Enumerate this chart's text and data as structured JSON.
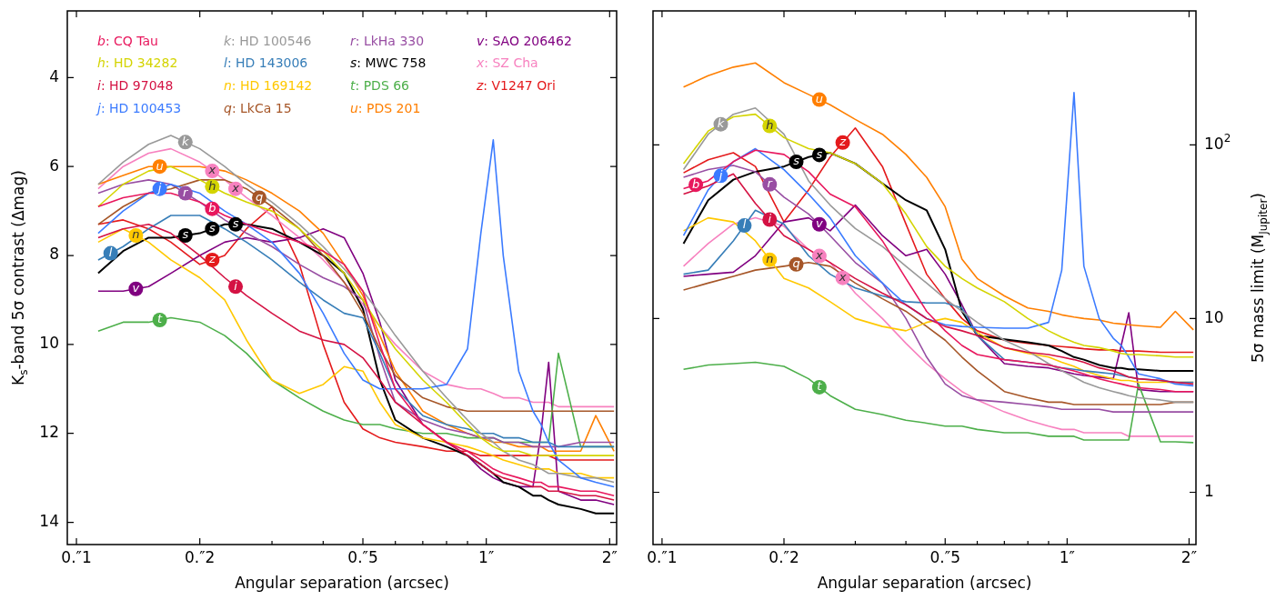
{
  "chart_data": [
    {
      "type": "line",
      "xlabel": "Angular separation (arcsec)",
      "ylabel": "K$_{s}$-band 5σ contrast (Δmag)",
      "log": "x",
      "legend": "top",
      "marker": "none",
      "x": [
        0.113,
        0.13,
        0.15,
        0.17,
        0.2,
        0.23,
        0.26,
        0.3,
        0.35,
        0.4,
        0.45,
        0.5,
        0.55,
        0.6,
        0.7,
        0.8,
        0.9,
        0.97,
        1.04,
        1.1,
        1.2,
        1.3,
        1.36,
        1.42,
        1.5,
        1.7,
        1.85,
        2.05
      ],
      "xlim": [
        0.095,
        2.08
      ],
      "ylim": [
        14.5,
        2.5
      ],
      "xticks": [
        {
          "value": 0.1,
          "label": "0.″1"
        },
        {
          "value": 0.2,
          "label": "0.″2"
        },
        {
          "value": 0.3,
          "label": null
        },
        {
          "value": 0.4,
          "label": null
        },
        {
          "value": 0.5,
          "label": "0.″5"
        },
        {
          "value": 0.6,
          "label": null
        },
        {
          "value": 0.7,
          "label": null
        },
        {
          "value": 0.8,
          "label": null
        },
        {
          "value": 0.9,
          "label": null
        },
        {
          "value": 1,
          "label": "1″"
        },
        {
          "value": 2,
          "label": "2″"
        }
      ],
      "yticks": [
        4,
        6,
        8,
        10,
        12,
        14
      ],
      "series": [
        {
          "name": "b: CQ Tau",
          "color": "#e8175d",
          "values": [
            6.9,
            6.7,
            6.6,
            6.6,
            6.8,
            7.1,
            7.3,
            7.5,
            7.7,
            7.9,
            8.2,
            8.8,
            10.0,
            11.0,
            11.8,
            12.2,
            12.4,
            12.6,
            12.8,
            12.9,
            13.0,
            13.1,
            13.1,
            13.2,
            13.2,
            13.3,
            13.3,
            13.4
          ],
          "value_labels": [
            null,
            null,
            null,
            null,
            "b",
            null,
            null,
            null,
            null,
            null,
            null,
            null,
            null,
            null,
            null,
            null,
            null,
            null,
            null,
            null,
            null,
            null,
            null,
            null,
            null,
            null,
            null,
            null
          ]
        },
        {
          "name": "h: HD 34282",
          "color": "#d4d400",
          "values": [
            6.9,
            6.4,
            6.1,
            6.0,
            6.3,
            6.6,
            6.8,
            7.0,
            7.4,
            7.9,
            8.4,
            9.0,
            9.6,
            10.1,
            10.8,
            11.3,
            11.8,
            12.1,
            12.3,
            12.4,
            12.4,
            12.5,
            12.5,
            12.5,
            12.5,
            12.5,
            12.5,
            12.5
          ],
          "value_labels": [
            null,
            null,
            null,
            null,
            "h",
            null,
            null,
            null,
            null,
            null,
            null,
            null,
            null,
            null,
            null,
            null,
            null,
            null,
            null,
            null,
            null,
            null,
            null,
            null,
            null,
            null,
            null,
            null
          ]
        },
        {
          "name": "i: HD 97048",
          "color": "#d41243",
          "values": [
            7.6,
            7.4,
            7.3,
            7.5,
            8.0,
            8.5,
            8.9,
            9.3,
            9.7,
            9.9,
            10.0,
            10.3,
            10.8,
            11.3,
            11.8,
            12.2,
            12.5,
            12.7,
            12.9,
            13.0,
            13.1,
            13.2,
            13.2,
            13.3,
            13.3,
            13.4,
            13.4,
            13.5
          ],
          "value_labels": [
            null,
            null,
            null,
            null,
            null,
            "i",
            null,
            null,
            null,
            null,
            null,
            null,
            null,
            null,
            null,
            null,
            null,
            null,
            null,
            null,
            null,
            null,
            null,
            null,
            null,
            null,
            null,
            null
          ]
        },
        {
          "name": "j: HD 100453",
          "color": "#3b7bff",
          "values": [
            7.5,
            7.0,
            6.6,
            6.4,
            6.6,
            7.0,
            7.3,
            7.7,
            8.4,
            9.3,
            10.2,
            10.8,
            11.0,
            11.0,
            11.0,
            10.9,
            10.1,
            7.5,
            5.4,
            8.0,
            10.6,
            11.5,
            11.8,
            12.2,
            12.6,
            13.0,
            13.1,
            13.2
          ],
          "value_labels": [
            null,
            null,
            "j",
            null,
            null,
            null,
            null,
            null,
            null,
            null,
            null,
            null,
            null,
            null,
            null,
            null,
            null,
            null,
            null,
            null,
            null,
            null,
            null,
            null,
            null,
            null,
            null,
            null
          ]
        },
        {
          "name": "k: HD 100546",
          "color": "#999999",
          "values": [
            6.4,
            5.9,
            5.5,
            5.3,
            5.6,
            6.0,
            6.4,
            6.8,
            7.3,
            7.8,
            8.3,
            8.8,
            9.3,
            9.8,
            10.6,
            11.2,
            11.7,
            12.0,
            12.2,
            12.4,
            12.6,
            12.7,
            12.8,
            12.9,
            12.9,
            13.0,
            13.0,
            13.1
          ],
          "value_labels": [
            null,
            null,
            null,
            "k",
            null,
            null,
            null,
            null,
            null,
            null,
            null,
            null,
            null,
            null,
            null,
            null,
            null,
            null,
            null,
            null,
            null,
            null,
            null,
            null,
            null,
            null,
            null,
            null
          ]
        },
        {
          "name": "l: HD 143006",
          "color": "#377eb8",
          "values": [
            8.1,
            7.8,
            7.4,
            7.1,
            7.1,
            7.4,
            7.7,
            8.1,
            8.6,
            9.0,
            9.3,
            9.4,
            10.2,
            11.0,
            11.6,
            11.8,
            11.9,
            12.0,
            12.0,
            12.1,
            12.1,
            12.2,
            12.2,
            12.2,
            12.3,
            12.3,
            12.3,
            12.3
          ],
          "value_labels": [
            "l",
            null,
            null,
            null,
            null,
            null,
            null,
            null,
            null,
            null,
            null,
            null,
            null,
            null,
            null,
            null,
            null,
            null,
            null,
            null,
            null,
            null,
            null,
            null,
            null,
            null,
            null,
            null
          ]
        },
        {
          "name": "n: HD 169142",
          "color": "#ffc800",
          "values": [
            7.7,
            7.4,
            7.7,
            8.1,
            8.5,
            9.0,
            9.9,
            10.8,
            11.1,
            10.9,
            10.5,
            10.6,
            11.3,
            11.8,
            12.1,
            12.2,
            12.3,
            12.4,
            12.5,
            12.6,
            12.7,
            12.8,
            12.8,
            12.8,
            12.9,
            12.9,
            13.0,
            13.0
          ],
          "value_labels": [
            null,
            "n",
            null,
            null,
            null,
            null,
            null,
            null,
            null,
            null,
            null,
            null,
            null,
            null,
            null,
            null,
            null,
            null,
            null,
            null,
            null,
            null,
            null,
            null,
            null,
            null,
            null,
            null
          ]
        },
        {
          "name": "q: LkCa 15",
          "color": "#a65628",
          "values": [
            7.3,
            6.9,
            6.6,
            6.5,
            6.3,
            6.3,
            6.5,
            6.9,
            7.4,
            8.0,
            8.6,
            9.3,
            10.1,
            10.7,
            11.2,
            11.4,
            11.5,
            11.5,
            11.5,
            11.5,
            11.5,
            11.5,
            11.5,
            11.5,
            11.5,
            11.5,
            11.5,
            11.5
          ],
          "value_labels": [
            null,
            null,
            null,
            null,
            null,
            null,
            "q",
            null,
            null,
            null,
            null,
            null,
            null,
            null,
            null,
            null,
            null,
            null,
            null,
            null,
            null,
            null,
            null,
            null,
            null,
            null,
            null,
            null
          ]
        },
        {
          "name": "r: LkHa 330",
          "color": "#984ea3",
          "values": [
            6.6,
            6.4,
            6.3,
            6.4,
            6.8,
            7.2,
            7.5,
            7.8,
            8.2,
            8.5,
            8.7,
            9.0,
            10.3,
            11.3,
            11.7,
            11.9,
            12.0,
            12.1,
            12.1,
            12.2,
            12.2,
            12.3,
            12.3,
            12.3,
            12.3,
            12.2,
            12.2,
            12.2
          ],
          "value_labels": [
            null,
            null,
            null,
            "r",
            null,
            null,
            null,
            null,
            null,
            null,
            null,
            null,
            null,
            null,
            null,
            null,
            null,
            null,
            null,
            null,
            null,
            null,
            null,
            null,
            null,
            null,
            null,
            null
          ]
        },
        {
          "name": "s: MWC 758",
          "color": "#000000",
          "values": [
            8.4,
            7.9,
            7.6,
            7.6,
            7.5,
            7.3,
            7.3,
            7.4,
            7.7,
            8.0,
            8.4,
            9.2,
            10.8,
            11.7,
            12.1,
            12.3,
            12.5,
            12.7,
            12.9,
            13.1,
            13.2,
            13.4,
            13.4,
            13.5,
            13.6,
            13.7,
            13.8,
            13.8
          ],
          "value_labels": [
            null,
            null,
            null,
            "s",
            "s",
            "s",
            null,
            null,
            null,
            null,
            null,
            null,
            null,
            null,
            null,
            null,
            null,
            null,
            null,
            null,
            null,
            null,
            null,
            null,
            null,
            null,
            null,
            null
          ]
        },
        {
          "name": "t: PDS 66",
          "color": "#4daf4a",
          "values": [
            9.7,
            9.5,
            9.5,
            9.4,
            9.5,
            9.8,
            10.2,
            10.8,
            11.2,
            11.5,
            11.7,
            11.8,
            11.8,
            11.9,
            12.0,
            12.0,
            12.1,
            12.1,
            12.1,
            12.2,
            12.2,
            12.2,
            12.2,
            12.2,
            10.2,
            12.3,
            12.3,
            12.3
          ],
          "value_labels": [
            null,
            null,
            "t",
            null,
            null,
            null,
            null,
            null,
            null,
            null,
            null,
            null,
            null,
            null,
            null,
            null,
            null,
            null,
            null,
            null,
            null,
            null,
            null,
            null,
            null,
            null,
            null,
            null
          ]
        },
        {
          "name": "u: PDS 201",
          "color": "#ff7f00",
          "values": [
            6.4,
            6.2,
            6.0,
            6.0,
            6.0,
            6.1,
            6.3,
            6.6,
            7.0,
            7.5,
            8.2,
            8.9,
            9.8,
            10.6,
            11.5,
            11.8,
            12.0,
            12.1,
            12.2,
            12.2,
            12.3,
            12.3,
            12.3,
            12.4,
            12.4,
            12.4,
            11.6,
            12.4
          ],
          "value_labels": [
            null,
            null,
            "u",
            null,
            null,
            null,
            null,
            null,
            null,
            null,
            null,
            null,
            null,
            null,
            null,
            null,
            null,
            null,
            null,
            null,
            null,
            null,
            null,
            null,
            null,
            null,
            null,
            null
          ]
        },
        {
          "name": "v: SAO 206462",
          "color": "#800080",
          "values": [
            8.8,
            8.8,
            8.7,
            8.4,
            8.0,
            7.7,
            7.6,
            7.7,
            7.6,
            7.4,
            7.6,
            8.4,
            9.5,
            10.8,
            11.8,
            12.2,
            12.5,
            12.8,
            13.0,
            13.1,
            13.2,
            13.2,
            12.0,
            10.4,
            13.3,
            13.5,
            13.5,
            13.6
          ],
          "value_labels": [
            null,
            "v",
            null,
            null,
            null,
            null,
            null,
            null,
            null,
            null,
            null,
            null,
            null,
            null,
            null,
            null,
            null,
            null,
            null,
            null,
            null,
            null,
            null,
            null,
            null,
            null,
            null,
            null
          ]
        },
        {
          "name": "x: SZ Cha",
          "color": "#f781bf",
          "values": [
            6.5,
            6.0,
            5.7,
            5.6,
            5.9,
            6.3,
            6.7,
            7.1,
            7.6,
            8.1,
            8.6,
            9.1,
            9.6,
            10.0,
            10.6,
            10.9,
            11.0,
            11.0,
            11.1,
            11.2,
            11.2,
            11.3,
            11.3,
            11.3,
            11.4,
            11.4,
            11.4,
            11.4
          ],
          "value_labels": [
            null,
            null,
            null,
            null,
            "x",
            "x",
            null,
            null,
            null,
            null,
            null,
            null,
            null,
            null,
            null,
            null,
            null,
            null,
            null,
            null,
            null,
            null,
            null,
            null,
            null,
            null,
            null,
            null
          ]
        },
        {
          "name": "z: V1247 Ori",
          "color": "#e41a1c",
          "values": [
            7.3,
            7.2,
            7.4,
            7.7,
            8.2,
            8.0,
            7.4,
            6.9,
            8.2,
            10.0,
            11.3,
            11.9,
            12.1,
            12.2,
            12.3,
            12.4,
            12.4,
            12.5,
            12.5,
            12.5,
            12.5,
            12.5,
            12.5,
            12.5,
            12.6,
            12.6,
            12.6,
            12.6
          ],
          "value_labels": [
            null,
            null,
            null,
            null,
            "z",
            null,
            null,
            null,
            null,
            null,
            null,
            null,
            null,
            null,
            null,
            null,
            null,
            null,
            null,
            null,
            null,
            null,
            null,
            null,
            null,
            null,
            null,
            null
          ]
        }
      ]
    },
    {
      "type": "line",
      "xlabel": "Angular separation (arcsec)",
      "ylabel": "5σ mass limit (M$_{Jupiter}$)",
      "log": "xy",
      "marker": "none",
      "x": [
        0.113,
        0.13,
        0.15,
        0.17,
        0.2,
        0.23,
        0.26,
        0.3,
        0.35,
        0.4,
        0.45,
        0.5,
        0.55,
        0.6,
        0.7,
        0.8,
        0.9,
        0.97,
        1.04,
        1.1,
        1.2,
        1.3,
        1.36,
        1.42,
        1.5,
        1.7,
        1.85,
        2.05
      ],
      "xlim": [
        0.095,
        2.08
      ],
      "ylim": [
        0.5,
        590
      ],
      "xticks": [
        {
          "value": 0.1,
          "label": "0.″1"
        },
        {
          "value": 0.2,
          "label": "0.″2"
        },
        {
          "value": 0.3,
          "label": null
        },
        {
          "value": 0.4,
          "label": null
        },
        {
          "value": 0.5,
          "label": "0.″5"
        },
        {
          "value": 0.6,
          "label": null
        },
        {
          "value": 0.7,
          "label": null
        },
        {
          "value": 0.8,
          "label": null
        },
        {
          "value": 0.9,
          "label": null
        },
        {
          "value": 1,
          "label": "1″"
        },
        {
          "value": 2,
          "label": "2″"
        }
      ],
      "yticks": [
        1,
        10,
        {
          "value": 100,
          "label": "10$^{2}$"
        }
      ],
      "series": [
        {
          "color": "#e8175d",
          "values": [
            56,
            62,
            80,
            93,
            88,
            70,
            52,
            44,
            28,
            17,
            11,
            8.5,
            7,
            6.2,
            5.8,
            5.6,
            5.4,
            5.2,
            5,
            4.8,
            4.5,
            4.3,
            4.2,
            4.1,
            4,
            3.9,
            3.8,
            3.8
          ],
          "value_labels": [
            "b",
            null,
            null,
            null,
            null,
            null,
            null,
            null,
            null,
            null,
            null,
            null,
            null,
            null,
            null,
            null,
            null,
            null,
            null,
            null,
            null,
            null,
            null,
            null,
            null,
            null,
            null,
            null
          ]
        },
        {
          "color": "#d4d400",
          "values": [
            78,
            120,
            145,
            150,
            110,
            95,
            90,
            78,
            60,
            40,
            26,
            20,
            17,
            15,
            12.5,
            10,
            8.5,
            7.8,
            7.3,
            7,
            6.8,
            6.5,
            6.3,
            6.2,
            6.2,
            6.1,
            6.0,
            6.0
          ],
          "value_labels": [
            null,
            null,
            null,
            "h",
            null,
            null,
            null,
            null,
            null,
            null,
            null,
            null,
            null,
            null,
            null,
            null,
            null,
            null,
            null,
            null,
            null,
            null,
            null,
            null,
            null,
            null,
            null,
            null
          ]
        },
        {
          "color": "#d41243",
          "values": [
            52,
            58,
            68,
            46,
            30,
            25,
            21,
            17,
            14,
            12,
            10,
            9,
            8.5,
            8,
            6.8,
            6.4,
            6.2,
            6,
            5.8,
            5.6,
            5.2,
            5,
            4.8,
            4.6,
            4.5,
            4.4,
            4.3,
            4.2
          ],
          "value_labels": [
            null,
            null,
            null,
            "i",
            null,
            null,
            null,
            null,
            null,
            null,
            null,
            null,
            null,
            null,
            null,
            null,
            null,
            null,
            null,
            null,
            null,
            null,
            null,
            null,
            null,
            null,
            null,
            null
          ]
        },
        {
          "color": "#3b7bff",
          "values": [
            30,
            55,
            80,
            95,
            72,
            52,
            38,
            23,
            16,
            12,
            10,
            9.2,
            9,
            8.9,
            8.8,
            8.8,
            9.5,
            19,
            200,
            20,
            10,
            7.7,
            7,
            6,
            4.8,
            4.5,
            4.2,
            4.1
          ],
          "value_labels": [
            null,
            "j",
            null,
            null,
            null,
            null,
            null,
            null,
            null,
            null,
            null,
            null,
            null,
            null,
            null,
            null,
            null,
            null,
            null,
            null,
            null,
            null,
            null,
            null,
            null,
            null,
            null,
            null
          ]
        },
        {
          "color": "#999999",
          "values": [
            72,
            115,
            150,
            163,
            115,
            62,
            45,
            33,
            26,
            20,
            16,
            13,
            11,
            9.5,
            7.5,
            6.5,
            5.5,
            5.0,
            4.6,
            4.3,
            4.0,
            3.8,
            3.7,
            3.6,
            3.5,
            3.4,
            3.3,
            3.3
          ],
          "value_labels": [
            null,
            "k",
            null,
            null,
            null,
            null,
            null,
            null,
            null,
            null,
            null,
            null,
            null,
            null,
            null,
            null,
            null,
            null,
            null,
            null,
            null,
            null,
            null,
            null,
            null,
            null,
            null,
            null
          ]
        },
        {
          "color": "#377eb8",
          "values": [
            18,
            19,
            28,
            42,
            35,
            23,
            18,
            15,
            13.5,
            12.5,
            12.3,
            12.3,
            11.5,
            8,
            5.8,
            5.6,
            5.4,
            5.2,
            5.1,
            5,
            4.9,
            4.8,
            4.7,
            4.6,
            4.5,
            4.4,
            4.3,
            4.3
          ],
          "value_labels": [
            null,
            null,
            "l",
            null,
            null,
            null,
            null,
            null,
            null,
            null,
            null,
            null,
            null,
            null,
            null,
            null,
            null,
            null,
            null,
            null,
            null,
            null,
            null,
            null,
            null,
            null,
            null,
            null
          ]
        },
        {
          "color": "#ffc800",
          "values": [
            32,
            38,
            36,
            28,
            17,
            15,
            12.5,
            10,
            9,
            8.5,
            9.5,
            10,
            9.5,
            8.3,
            6.8,
            6.3,
            6,
            5.6,
            5.3,
            5.0,
            4.7,
            4.5,
            4.4,
            4.4,
            4.3,
            4.3,
            4.3,
            4.3
          ],
          "value_labels": [
            null,
            null,
            null,
            "n",
            null,
            null,
            null,
            null,
            null,
            null,
            null,
            null,
            null,
            null,
            null,
            null,
            null,
            null,
            null,
            null,
            null,
            null,
            null,
            null,
            null,
            null,
            null,
            null
          ]
        },
        {
          "color": "#a65628",
          "values": [
            14.6,
            16,
            17.5,
            19,
            20,
            21,
            20,
            16,
            13,
            11,
            9,
            7.5,
            6,
            5,
            3.8,
            3.5,
            3.3,
            3.3,
            3.2,
            3.2,
            3.2,
            3.2,
            3.2,
            3.2,
            3.2,
            3.2,
            3.3,
            3.3
          ],
          "value_labels": [
            null,
            null,
            null,
            null,
            "q",
            null,
            null,
            null,
            null,
            null,
            null,
            null,
            null,
            null,
            null,
            null,
            null,
            null,
            null,
            null,
            null,
            null,
            null,
            null,
            null,
            null,
            null,
            null
          ]
        },
        {
          "color": "#984ea3",
          "values": [
            65,
            72,
            76,
            70,
            50,
            40,
            30,
            21,
            16,
            10,
            6,
            4.2,
            3.6,
            3.4,
            3.3,
            3.2,
            3.1,
            3.0,
            3.0,
            3.0,
            3.0,
            2.9,
            2.9,
            2.9,
            2.9,
            2.9,
            2.9,
            2.9
          ],
          "value_labels": [
            null,
            null,
            null,
            "r",
            null,
            null,
            null,
            null,
            null,
            null,
            null,
            null,
            null,
            null,
            null,
            null,
            null,
            null,
            null,
            null,
            null,
            null,
            null,
            null,
            null,
            null,
            null,
            null
          ]
        },
        {
          "color": "#000000",
          "values": [
            27,
            48,
            63,
            70,
            75,
            85,
            90,
            78,
            60,
            48,
            42,
            25,
            11,
            8,
            7.6,
            7.3,
            7,
            6.5,
            6,
            5.8,
            5.4,
            5.2,
            5.2,
            5.1,
            5.1,
            5,
            5,
            5
          ],
          "value_labels": [
            null,
            null,
            null,
            null,
            "s",
            "s",
            null,
            null,
            null,
            null,
            null,
            null,
            null,
            null,
            null,
            null,
            null,
            null,
            null,
            null,
            null,
            null,
            null,
            null,
            null,
            null,
            null,
            null
          ]
        },
        {
          "color": "#4daf4a",
          "values": [
            5.1,
            5.4,
            5.5,
            5.6,
            5.3,
            4.5,
            3.6,
            3.0,
            2.8,
            2.6,
            2.5,
            2.4,
            2.4,
            2.3,
            2.2,
            2.2,
            2.1,
            2.1,
            2.1,
            2.0,
            2.0,
            2.0,
            2.0,
            2.0,
            4.2,
            1.95,
            1.95,
            1.93
          ],
          "value_labels": [
            null,
            null,
            null,
            null,
            null,
            "t",
            null,
            null,
            null,
            null,
            null,
            null,
            null,
            null,
            null,
            null,
            null,
            null,
            null,
            null,
            null,
            null,
            null,
            null,
            null,
            null,
            null,
            null
          ]
        },
        {
          "color": "#ff7f00",
          "values": [
            215,
            250,
            280,
            296,
            228,
            195,
            170,
            140,
            115,
            88,
            65,
            44,
            22,
            17,
            13.5,
            11.5,
            11,
            10.5,
            10.2,
            10,
            9.8,
            9.4,
            9.3,
            9.2,
            9.1,
            8.9,
            11,
            8.6
          ],
          "value_labels": [
            null,
            null,
            null,
            null,
            null,
            "u",
            null,
            null,
            null,
            null,
            null,
            null,
            null,
            null,
            null,
            null,
            null,
            null,
            null,
            null,
            null,
            null,
            null,
            null,
            null,
            null,
            null,
            null
          ]
        },
        {
          "color": "#800080",
          "values": [
            17.5,
            18,
            18.5,
            23,
            36,
            38,
            32,
            45,
            30,
            23,
            25,
            18,
            12,
            8,
            5.5,
            5.3,
            5.2,
            5,
            4.8,
            4.7,
            4.6,
            4.5,
            7,
            10.8,
            3.9,
            3.8,
            3.8,
            3.8
          ],
          "value_labels": [
            null,
            null,
            null,
            null,
            null,
            "v",
            null,
            null,
            null,
            null,
            null,
            null,
            null,
            null,
            null,
            null,
            null,
            null,
            null,
            null,
            null,
            null,
            null,
            null,
            null,
            null,
            null,
            null
          ]
        },
        {
          "color": "#f781bf",
          "values": [
            20,
            27,
            35,
            38,
            34,
            25,
            21,
            14,
            10,
            7.2,
            5.5,
            4.5,
            3.8,
            3.4,
            2.9,
            2.6,
            2.4,
            2.3,
            2.3,
            2.2,
            2.2,
            2.2,
            2.2,
            2.1,
            2.1,
            2.1,
            2.1,
            2.1
          ],
          "value_labels": [
            null,
            null,
            null,
            null,
            null,
            "x",
            "x",
            null,
            null,
            null,
            null,
            null,
            null,
            null,
            null,
            null,
            null,
            null,
            null,
            null,
            null,
            null,
            null,
            null,
            null,
            null,
            null,
            null
          ]
        },
        {
          "color": "#e41a1c",
          "values": [
            69,
            82,
            90,
            75,
            36,
            55,
            85,
            125,
            75,
            35,
            18,
            13,
            10,
            8.5,
            7.5,
            7.2,
            7,
            6.9,
            6.8,
            6.7,
            6.6,
            6.6,
            6.5,
            6.5,
            6.5,
            6.4,
            6.4,
            6.4
          ],
          "value_labels": [
            null,
            null,
            null,
            null,
            null,
            null,
            "z",
            null,
            null,
            null,
            null,
            null,
            null,
            null,
            null,
            null,
            null,
            null,
            null,
            null,
            null,
            null,
            null,
            null,
            null,
            null,
            null,
            null
          ]
        }
      ]
    }
  ]
}
